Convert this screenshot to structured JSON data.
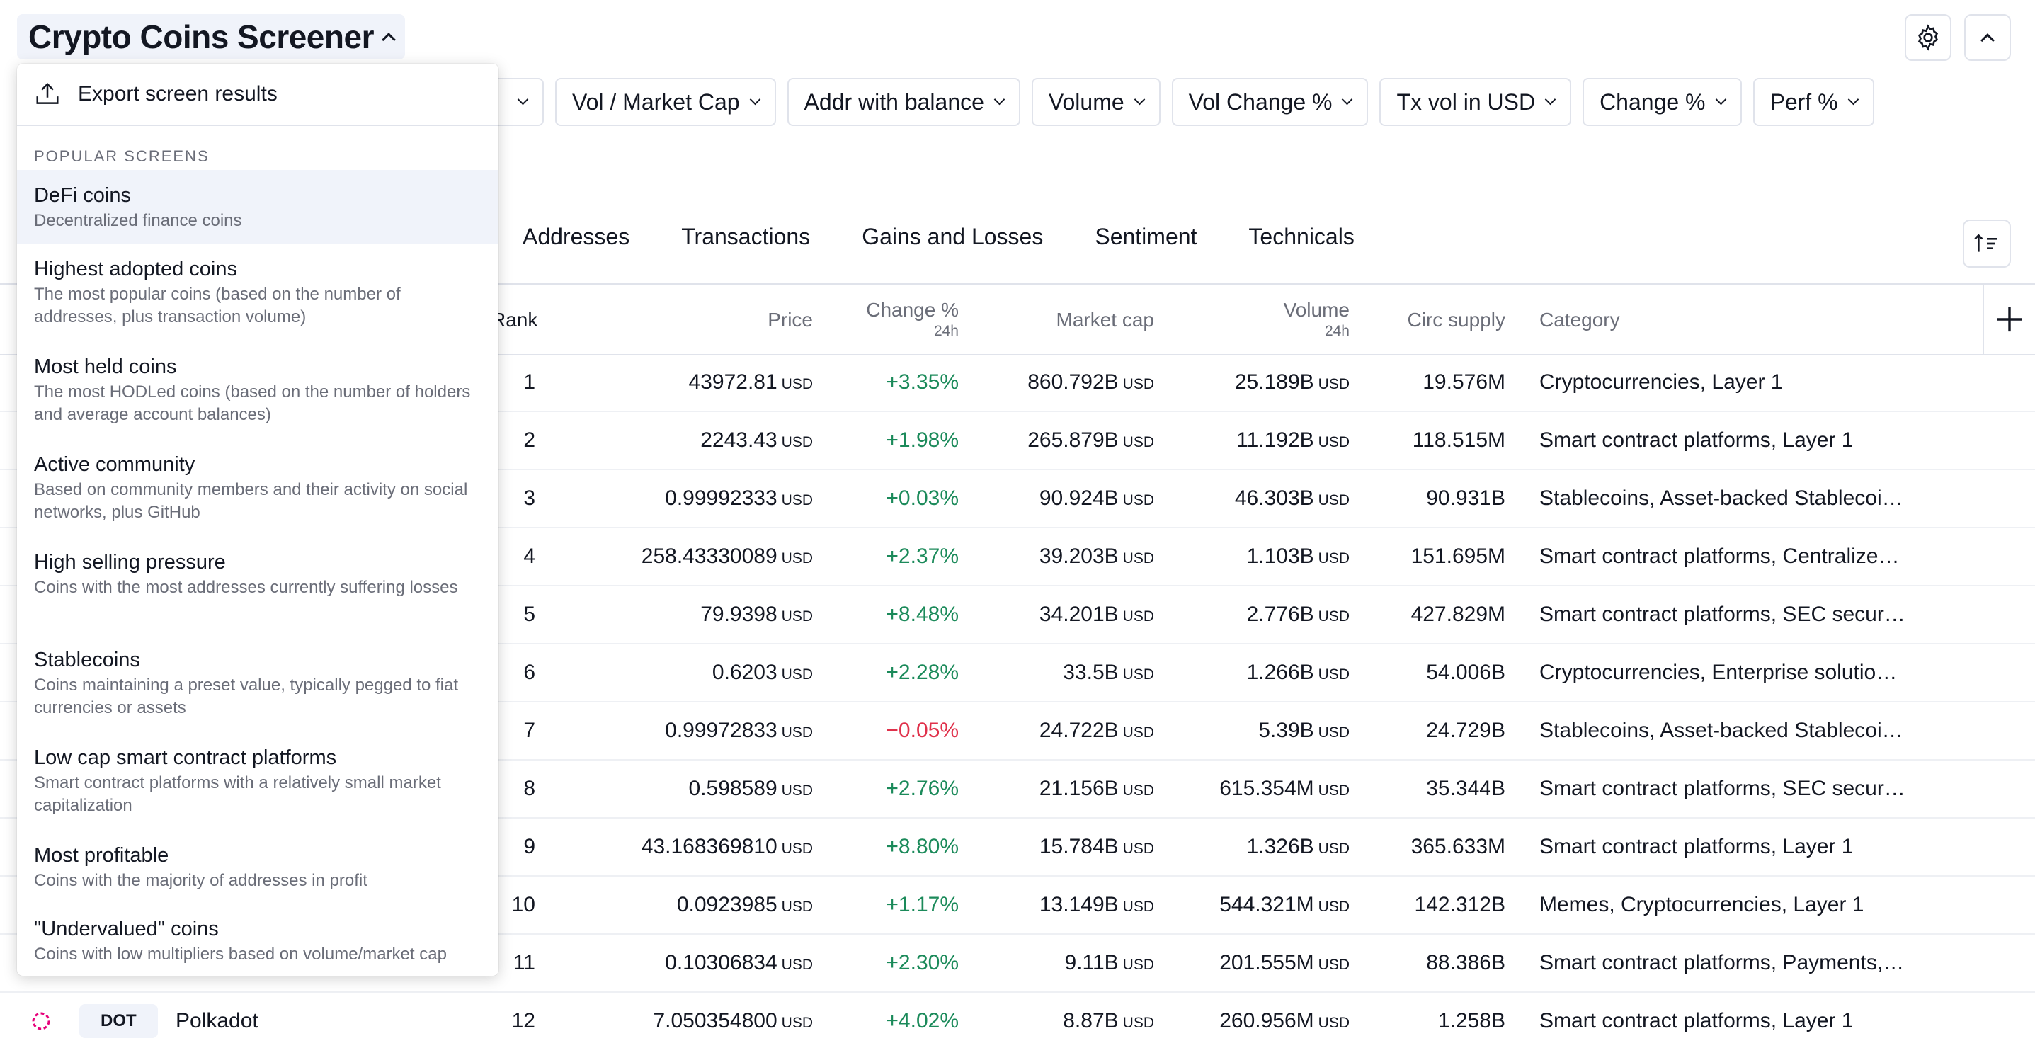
{
  "header": {
    "title": "Crypto Coins Screener"
  },
  "filters": [
    "Vol / Market Cap",
    "Addr with balance",
    "Volume",
    "Vol Change %",
    "Tx vol in USD",
    "Change %",
    "Perf %"
  ],
  "tabs": [
    "Addresses",
    "Transactions",
    "Gains and Losses",
    "Sentiment",
    "Technicals"
  ],
  "columns": {
    "rank": "Rank",
    "price": "Price",
    "change": "Change %",
    "change_sub": "24h",
    "market_cap": "Market cap",
    "volume": "Volume",
    "volume_sub": "24h",
    "circ_supply": "Circ supply",
    "category": "Category"
  },
  "currency_unit": "USD",
  "rows": [
    {
      "rank": "1",
      "price": "43972.81",
      "change": "+3.35%",
      "market_cap": "860.792B",
      "volume": "25.189B",
      "circ": "19.576M",
      "category": "Cryptocurrencies, Layer 1",
      "dir": "pos"
    },
    {
      "rank": "2",
      "price": "2243.43",
      "change": "+1.98%",
      "market_cap": "265.879B",
      "volume": "11.192B",
      "circ": "118.515M",
      "category": "Smart contract platforms, Layer 1",
      "dir": "pos"
    },
    {
      "rank": "3",
      "price": "0.99992333",
      "change": "+0.03%",
      "market_cap": "90.924B",
      "volume": "46.303B",
      "circ": "90.931B",
      "category": "Stablecoins, Asset-backed Stablecoi…",
      "dir": "pos"
    },
    {
      "rank": "4",
      "price": "258.43330089",
      "change": "+2.37%",
      "market_cap": "39.203B",
      "volume": "1.103B",
      "circ": "151.695M",
      "category": "Smart contract platforms, Centralize…",
      "dir": "pos"
    },
    {
      "rank": "5",
      "price": "79.9398",
      "change": "+8.48%",
      "market_cap": "34.201B",
      "volume": "2.776B",
      "circ": "427.829M",
      "category": "Smart contract platforms, SEC secur…",
      "dir": "pos"
    },
    {
      "rank": "6",
      "price": "0.6203",
      "change": "+2.28%",
      "market_cap": "33.5B",
      "volume": "1.266B",
      "circ": "54.006B",
      "category": "Cryptocurrencies, Enterprise solutio…",
      "dir": "pos"
    },
    {
      "rank": "7",
      "price": "0.99972833",
      "change": "−0.05%",
      "market_cap": "24.722B",
      "volume": "5.39B",
      "circ": "24.729B",
      "category": "Stablecoins, Asset-backed Stablecoi…",
      "dir": "neg"
    },
    {
      "rank": "8",
      "price": "0.598589",
      "change": "+2.76%",
      "market_cap": "21.156B",
      "volume": "615.354M",
      "circ": "35.344B",
      "category": "Smart contract platforms, SEC secur…",
      "dir": "pos"
    },
    {
      "rank": "9",
      "price": "43.168369810",
      "change": "+8.80%",
      "market_cap": "15.784B",
      "volume": "1.326B",
      "circ": "365.633M",
      "category": "Smart contract platforms, Layer 1",
      "dir": "pos"
    },
    {
      "rank": "10",
      "price": "0.0923985",
      "change": "+1.17%",
      "market_cap": "13.149B",
      "volume": "544.321M",
      "circ": "142.312B",
      "category": "Memes, Cryptocurrencies, Layer 1",
      "dir": "pos"
    },
    {
      "rank": "11",
      "price": "0.10306834",
      "change": "+2.30%",
      "market_cap": "9.11B",
      "volume": "201.555M",
      "circ": "88.386B",
      "category": "Smart contract platforms, Payments,…",
      "dir": "pos"
    },
    {
      "rank": "12",
      "price": "7.050354800",
      "change": "+4.02%",
      "market_cap": "8.87B",
      "volume": "260.956M",
      "circ": "1.258B",
      "category": "Smart contract platforms, Layer 1",
      "dir": "pos",
      "ticker": "DOT",
      "name": "Polkadot"
    }
  ],
  "menu": {
    "export_label": "Export screen results",
    "section_label": "POPULAR SCREENS",
    "items": [
      {
        "title": "DeFi coins",
        "desc": "Decentralized finance coins"
      },
      {
        "title": "Highest adopted coins",
        "desc": "The most popular coins (based on the number of addresses, plus transaction volume)"
      },
      {
        "title": "Most held coins",
        "desc": "The most HODLed coins (based on the number of holders and average account balances)"
      },
      {
        "title": "Active community",
        "desc": "Based on community members and their activity on social networks, plus GitHub"
      },
      {
        "title": "High selling pressure",
        "desc": "Coins with the most addresses currently suffering losses"
      },
      {
        "title": "Stablecoins",
        "desc": "Coins maintaining a preset value, typically pegged to fiat currencies or assets"
      },
      {
        "title": "Low cap smart contract platforms",
        "desc": "Smart contract platforms with a relatively small market capitalization"
      },
      {
        "title": "Most profitable",
        "desc": "Coins with the majority of addresses in profit"
      },
      {
        "title": "\"Undervalued\" coins",
        "desc": "Coins with low multipliers based on volume/market cap"
      }
    ]
  },
  "colors": {
    "positive": "#1b8a5a",
    "negative": "#e0314b",
    "accent_bg": "#f0f3fa"
  }
}
